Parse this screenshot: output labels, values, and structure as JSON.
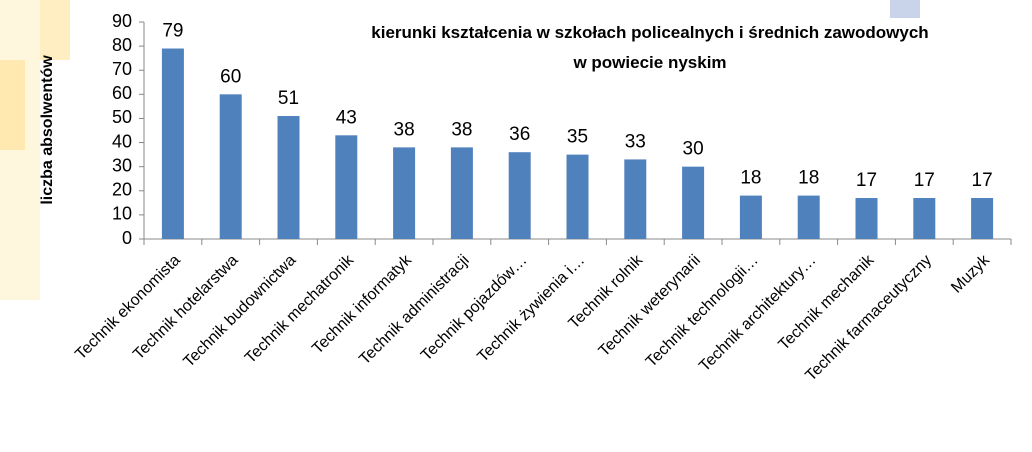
{
  "chart_data": {
    "type": "bar",
    "title": [
      "kierunki kształcenia w szkołach policealnych i średnich zawodowych",
      "w powiecie nyskim"
    ],
    "y_label": "liczba absolwentów",
    "categories": [
      "Technik ekonomista",
      "Technik hotelarstwa",
      "Technik budownictwa",
      "Technik mechatronik",
      "Technik informatyk",
      "Technik administracji",
      "Technik pojazdów…",
      "Technik żywienia i…",
      "Technik rolnik",
      "Technik weterynarii",
      "Technik technologii…",
      "Technik architektury…",
      "Technik mechanik",
      "Technik farmaceutyczny",
      "Muzyk"
    ],
    "values": [
      79,
      60,
      51,
      43,
      38,
      38,
      36,
      35,
      33,
      30,
      18,
      18,
      17,
      17,
      17
    ],
    "color": "#4f81bd",
    "ylim": [
      0,
      90
    ],
    "yticks": [
      0,
      10,
      20,
      30,
      40,
      50,
      60,
      70,
      80,
      90
    ],
    "grid": false
  }
}
